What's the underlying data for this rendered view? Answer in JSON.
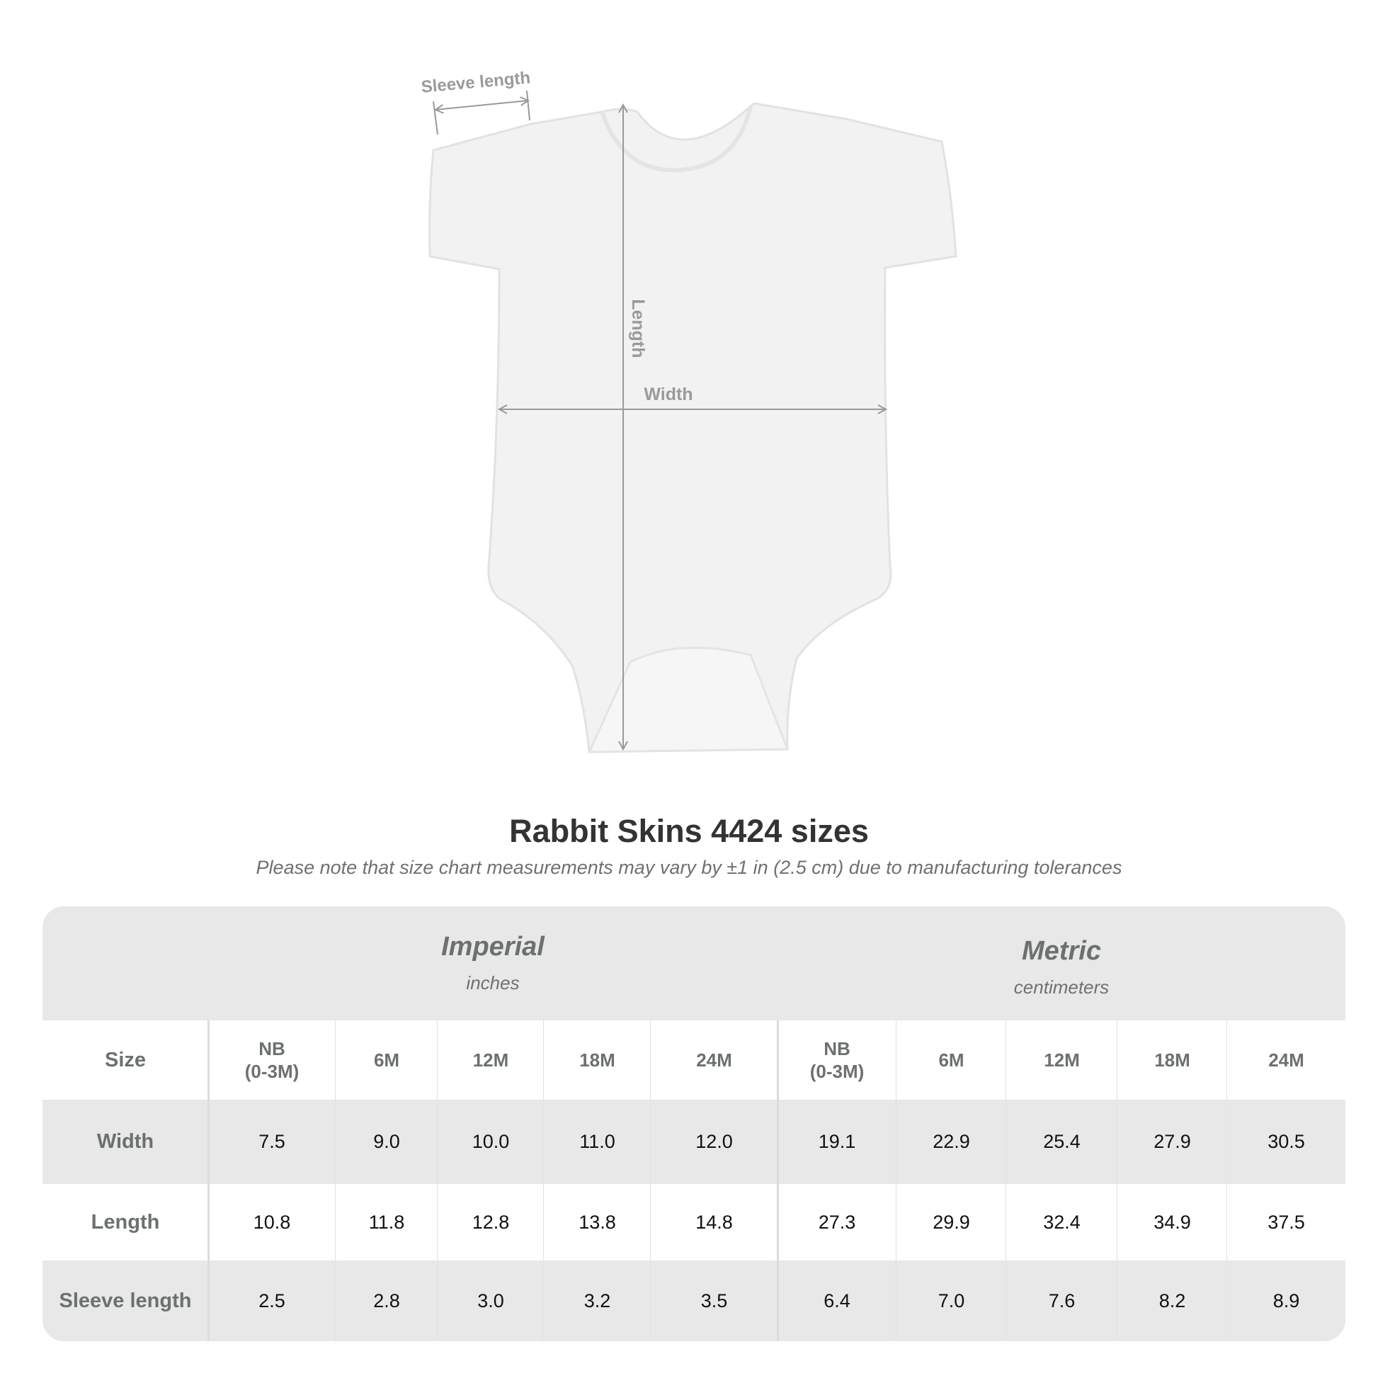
{
  "diagram": {
    "labels": {
      "sleeve_length": "Sleeve length",
      "length": "Length",
      "width": "Width"
    }
  },
  "title": "Rabbit Skins 4424 sizes",
  "subtitle": "Please note that size chart measurements may vary by ±1 in (2.5 cm) due to manufacturing tolerances",
  "table": {
    "groups": [
      {
        "title": "Imperial",
        "unit": "inches"
      },
      {
        "title": "Metric",
        "unit": "centimeters"
      }
    ],
    "size_label": "Size",
    "sizes": [
      "NB\n(0-3M)",
      "6M",
      "12M",
      "18M",
      "24M",
      "NB\n(0-3M)",
      "6M",
      "12M",
      "18M",
      "24M"
    ],
    "rows": [
      {
        "label": "Width",
        "values": [
          "7.5",
          "9.0",
          "10.0",
          "11.0",
          "12.0",
          "19.1",
          "22.9",
          "25.4",
          "27.9",
          "30.5"
        ]
      },
      {
        "label": "Length",
        "values": [
          "10.8",
          "11.8",
          "12.8",
          "13.8",
          "14.8",
          "27.3",
          "29.9",
          "32.4",
          "34.9",
          "37.5"
        ]
      },
      {
        "label": "Sleeve length",
        "values": [
          "2.5",
          "2.8",
          "3.0",
          "3.2",
          "3.5",
          "6.4",
          "7.0",
          "7.6",
          "8.2",
          "8.9"
        ]
      }
    ]
  },
  "colors": {
    "band": "#e8e8e8",
    "label": "#6b7070",
    "arrow": "#999999"
  }
}
